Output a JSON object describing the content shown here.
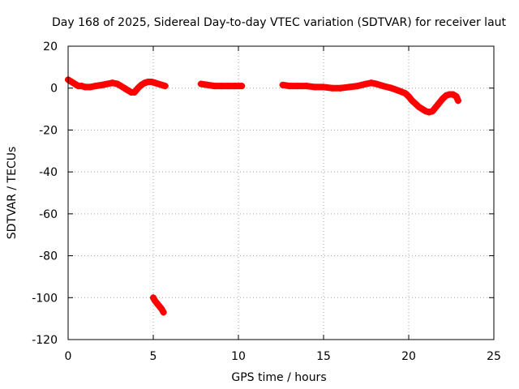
{
  "chart_data": {
    "type": "scatter",
    "title": "Day 168 of 2025, Sidereal Day-to-day VTEC variation (SDTVAR) for receiver laut",
    "xlabel": "GPS time / hours",
    "ylabel": "SDTVAR / TECUs",
    "xlim": [
      0,
      25
    ],
    "ylim": [
      -120,
      20
    ],
    "xticks": [
      "0",
      "5",
      "10",
      "15",
      "20",
      "25"
    ],
    "yticks": [
      "20",
      "0",
      "-20",
      "-40",
      "-60",
      "-80",
      "-100",
      "-120"
    ],
    "grid": true,
    "legend": "none",
    "marker_color": "#ff0000",
    "series": [
      {
        "segments": [
          {
            "x": [
              0.0,
              0.2,
              0.4,
              0.6,
              0.8,
              1.0,
              1.3,
              1.6,
              2.0,
              2.3,
              2.6,
              2.9,
              3.1,
              3.3,
              3.5,
              3.7,
              3.9,
              4.1,
              4.3,
              4.5,
              4.7,
              4.9,
              5.1,
              5.3,
              5.5,
              5.7
            ],
            "y": [
              4,
              3,
              2,
              1,
              1,
              0.5,
              0.5,
              1,
              1.5,
              2,
              2.5,
              2,
              1,
              0,
              -1,
              -2,
              -2,
              0,
              1.5,
              2.5,
              3,
              3,
              2.5,
              2,
              1.5,
              1
            ]
          },
          {
            "x": [
              5.0,
              5.1,
              5.2,
              5.3,
              5.4,
              5.5,
              5.6
            ],
            "y": [
              -100,
              -101.5,
              -102.5,
              -103.5,
              -104.5,
              -105.5,
              -107
            ]
          },
          {
            "x": [
              7.8,
              8.2,
              8.6,
              9.0,
              9.4,
              9.8,
              10.2
            ],
            "y": [
              2,
              1.5,
              1,
              1,
              1,
              1,
              1
            ]
          },
          {
            "x": [
              12.6,
              13.0,
              13.5,
              14.0,
              14.5,
              15.0,
              15.5,
              16.0,
              16.5,
              17.0,
              17.5,
              17.8,
              18.1,
              18.5,
              19.0,
              19.5,
              19.8,
              20.0,
              20.2,
              20.4,
              20.6,
              20.8,
              21.0,
              21.2,
              21.4,
              21.6,
              21.8,
              22.0,
              22.2,
              22.4,
              22.6,
              22.8,
              22.9
            ],
            "y": [
              1.5,
              1,
              1,
              1,
              0.5,
              0.5,
              0,
              0,
              0.5,
              1,
              2,
              2.5,
              2,
              1,
              0,
              -1.5,
              -2.5,
              -4,
              -6,
              -7.5,
              -9,
              -10,
              -11,
              -11.5,
              -11,
              -9,
              -7,
              -5,
              -3.5,
              -3,
              -3,
              -4,
              -6
            ]
          }
        ]
      }
    ]
  }
}
